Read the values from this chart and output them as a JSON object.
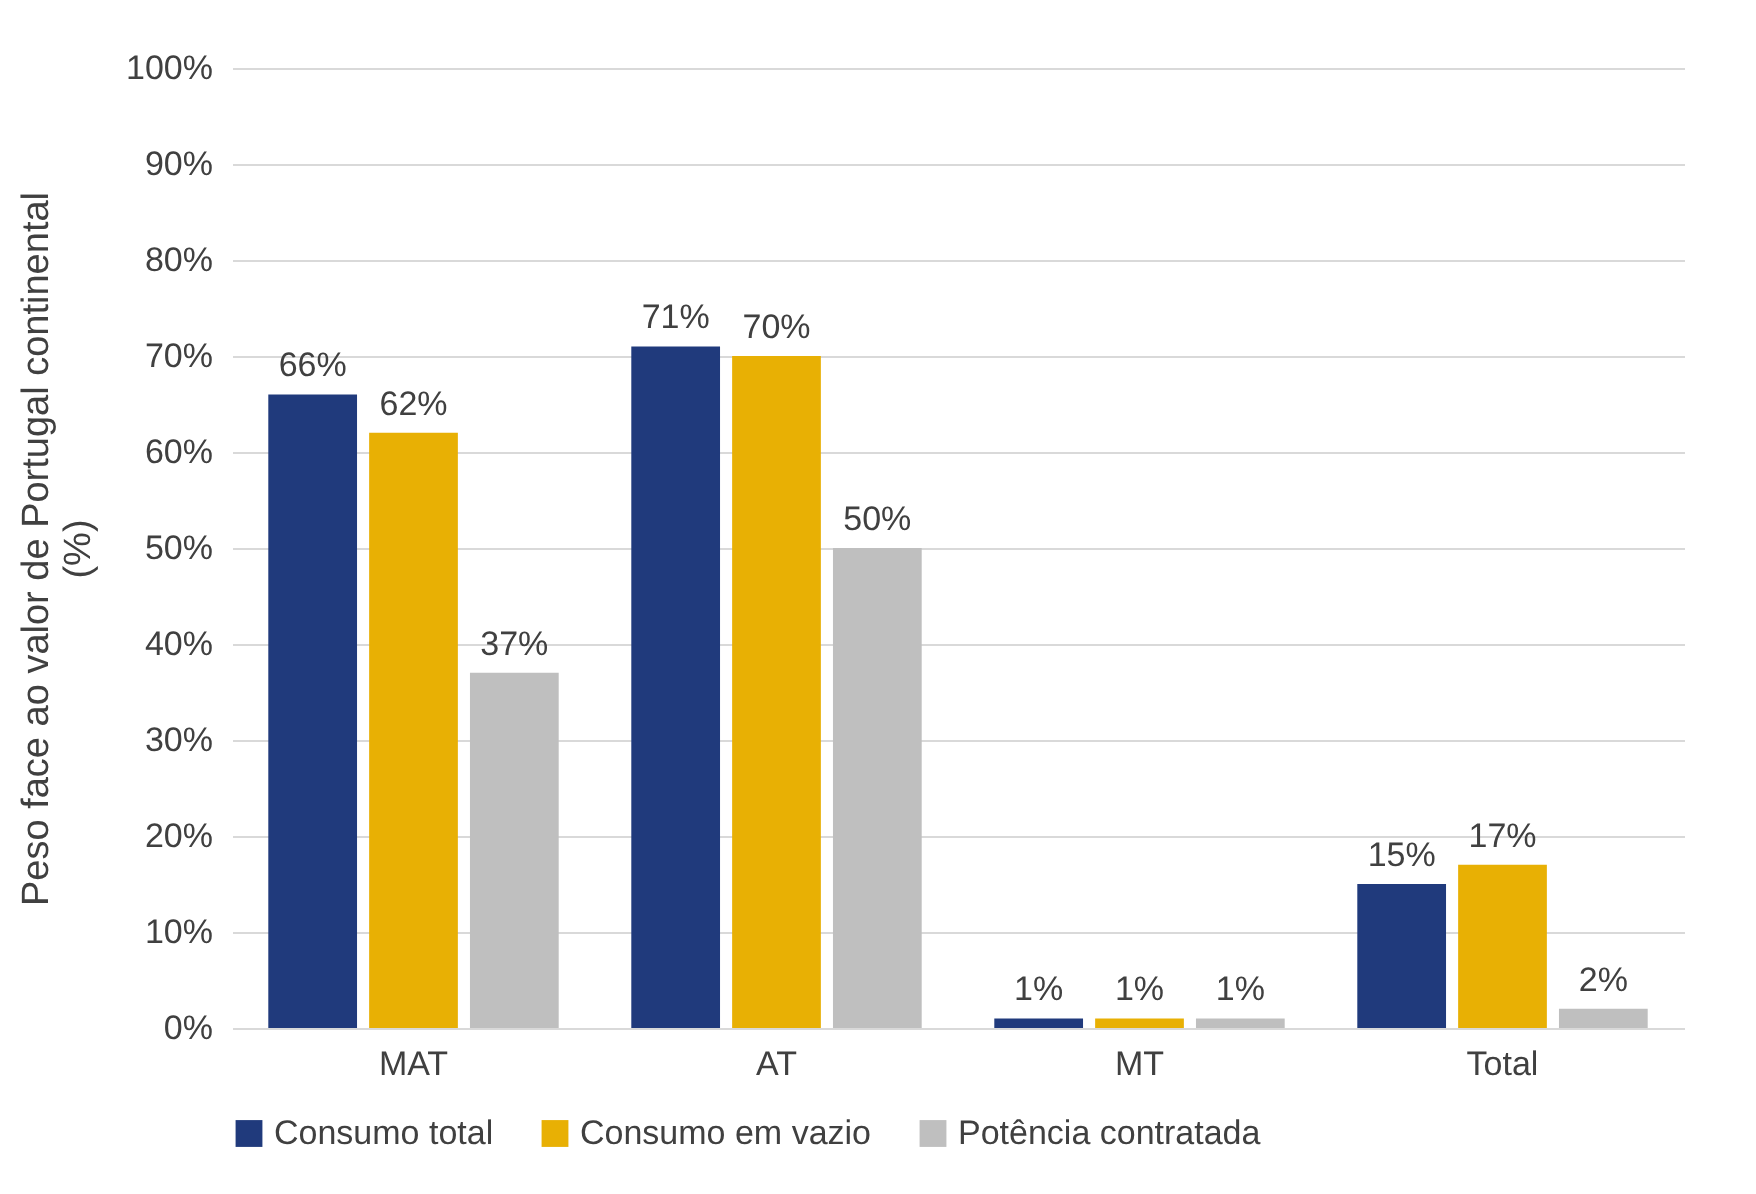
{
  "chart_data": {
    "type": "bar",
    "ylabel": "Peso face ao valor de Portugal continental\n(%)",
    "categories": [
      "MAT",
      "AT",
      "MT",
      "Total"
    ],
    "series": [
      {
        "name": "Consumo total",
        "color": "#203a7c",
        "values": [
          66,
          71,
          1,
          15
        ],
        "value_labels": [
          "66%",
          "71%",
          "1%",
          "15%"
        ]
      },
      {
        "name": "Consumo em vazio",
        "color": "#e8b004",
        "values": [
          62,
          70,
          1,
          17
        ],
        "value_labels": [
          "62%",
          "70%",
          "1%",
          "17%"
        ]
      },
      {
        "name": "Potência contratada",
        "color": "#bfbfbf",
        "values": [
          37,
          50,
          1,
          2
        ],
        "value_labels": [
          "37%",
          "50%",
          "1%",
          "2%"
        ]
      }
    ],
    "ylim": [
      0,
      100
    ],
    "yticks": [
      {
        "value": 0,
        "label": "0%"
      },
      {
        "value": 10,
        "label": "10%"
      },
      {
        "value": 20,
        "label": "20%"
      },
      {
        "value": 30,
        "label": "30%"
      },
      {
        "value": 40,
        "label": "40%"
      },
      {
        "value": 50,
        "label": "50%"
      },
      {
        "value": 60,
        "label": "60%"
      },
      {
        "value": 70,
        "label": "70%"
      },
      {
        "value": 80,
        "label": "80%"
      },
      {
        "value": 90,
        "label": "90%"
      },
      {
        "value": 100,
        "label": "100%"
      }
    ],
    "grid": "y",
    "legend": "bottom"
  }
}
